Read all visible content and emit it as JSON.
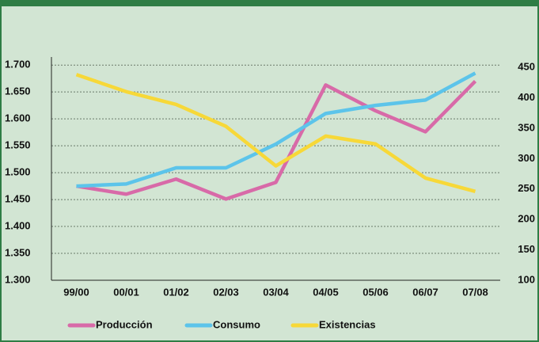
{
  "chart_data": {
    "type": "line",
    "categories": [
      "99/00",
      "00/01",
      "01/02",
      "02/03",
      "03/04",
      "04/05",
      "05/06",
      "06/07",
      "07/08"
    ],
    "series": [
      {
        "name": "Producción",
        "color": "#d86aa8",
        "values": [
          1.475,
          1.46,
          1.488,
          1.451,
          1.482,
          1.663,
          1.615,
          1.576,
          1.67
        ]
      },
      {
        "name": "Consumo",
        "color": "#5cc4ea",
        "values": [
          1.475,
          1.479,
          1.509,
          1.509,
          1.553,
          1.61,
          1.625,
          1.635,
          1.685
        ]
      },
      {
        "name": "Existencias",
        "color": "#f7d838",
        "axis": "y2",
        "values": [
          438,
          410,
          389,
          353,
          288,
          337,
          324,
          268,
          246
        ]
      }
    ],
    "ylim": [
      1.3,
      1.715
    ],
    "yticks": [
      {
        "value": 1.3,
        "label": "1.300"
      },
      {
        "value": 1.35,
        "label": "1.350"
      },
      {
        "value": 1.4,
        "label": "1.400"
      },
      {
        "value": 1.45,
        "label": "1.450"
      },
      {
        "value": 1.5,
        "label": "1.500"
      },
      {
        "value": 1.55,
        "label": "1.550"
      },
      {
        "value": 1.6,
        "label": "1.600"
      },
      {
        "value": 1.65,
        "label": "1.650"
      },
      {
        "value": 1.7,
        "label": "1.700"
      }
    ],
    "y2lim": [
      100,
      467
    ],
    "y2ticks": [
      100,
      150,
      200,
      250,
      300,
      350,
      400,
      450
    ],
    "grid": true
  }
}
